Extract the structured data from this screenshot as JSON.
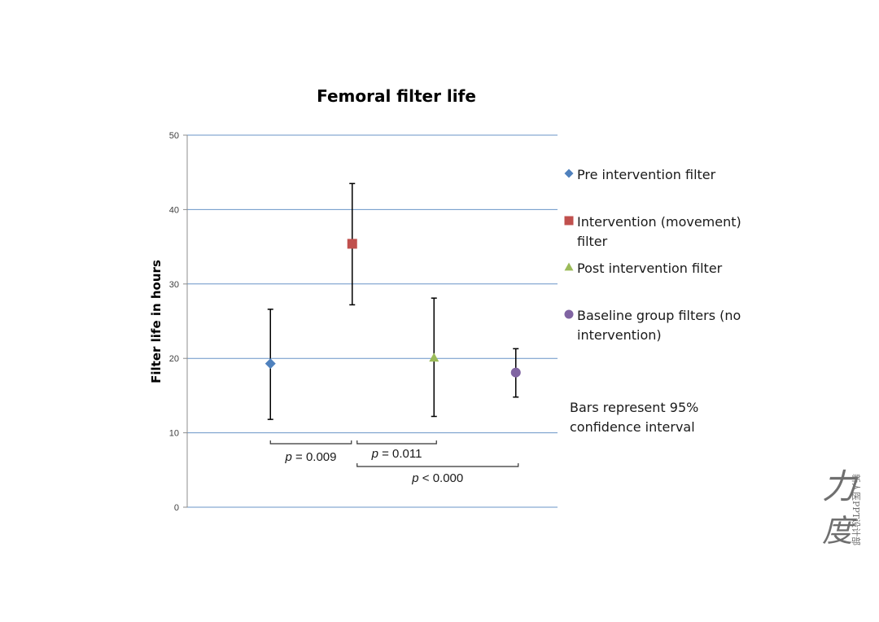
{
  "chart_data": {
    "type": "scatter",
    "title": "Femoral filter life",
    "ylabel": "Filter life in hours",
    "xlabel": "",
    "ylim": [
      0,
      50
    ],
    "yticks": [
      0,
      10,
      20,
      30,
      40,
      50
    ],
    "grid": true,
    "legend_position": "right",
    "series": [
      {
        "name": "Pre intervention filter",
        "marker": "diamond",
        "color": "#4f81bd",
        "y": 19.3,
        "ci": [
          11.8,
          26.6
        ]
      },
      {
        "name": "Intervention (movement) filter",
        "marker": "square",
        "color": "#c0504d",
        "y": 35.4,
        "ci": [
          27.2,
          43.5
        ]
      },
      {
        "name": "Post intervention filter",
        "marker": "triangle",
        "color": "#9bbb59",
        "y": 20.1,
        "ci": [
          12.2,
          28.1
        ]
      },
      {
        "name": "Baseline group filters (no intervention)",
        "marker": "circle",
        "color": "#8064a2",
        "y": 18.1,
        "ci": [
          14.8,
          21.3
        ]
      }
    ],
    "legend_lines": [
      [
        "Pre intervention filter"
      ],
      [
        "Intervention (movement)",
        "filter"
      ],
      [
        "Post intervention filter"
      ],
      [
        "Baseline group filters (no",
        "intervention)"
      ]
    ],
    "note_lines": [
      "Bars represent  95%",
      "confidence interval"
    ],
    "comparisons": [
      {
        "from": 1,
        "to": 2,
        "p_symbol": "p",
        "label": " = 0.009"
      },
      {
        "from": 2,
        "to": 3,
        "p_symbol": "p",
        "label": " = 0.011"
      },
      {
        "from": 2,
        "to": 4,
        "p_symbol": "p",
        "label": " < 0.000"
      }
    ]
  },
  "watermark": {
    "glyph_top": "力",
    "glyph_bottom": "度",
    "side_text": "新人医PPT设计部"
  }
}
